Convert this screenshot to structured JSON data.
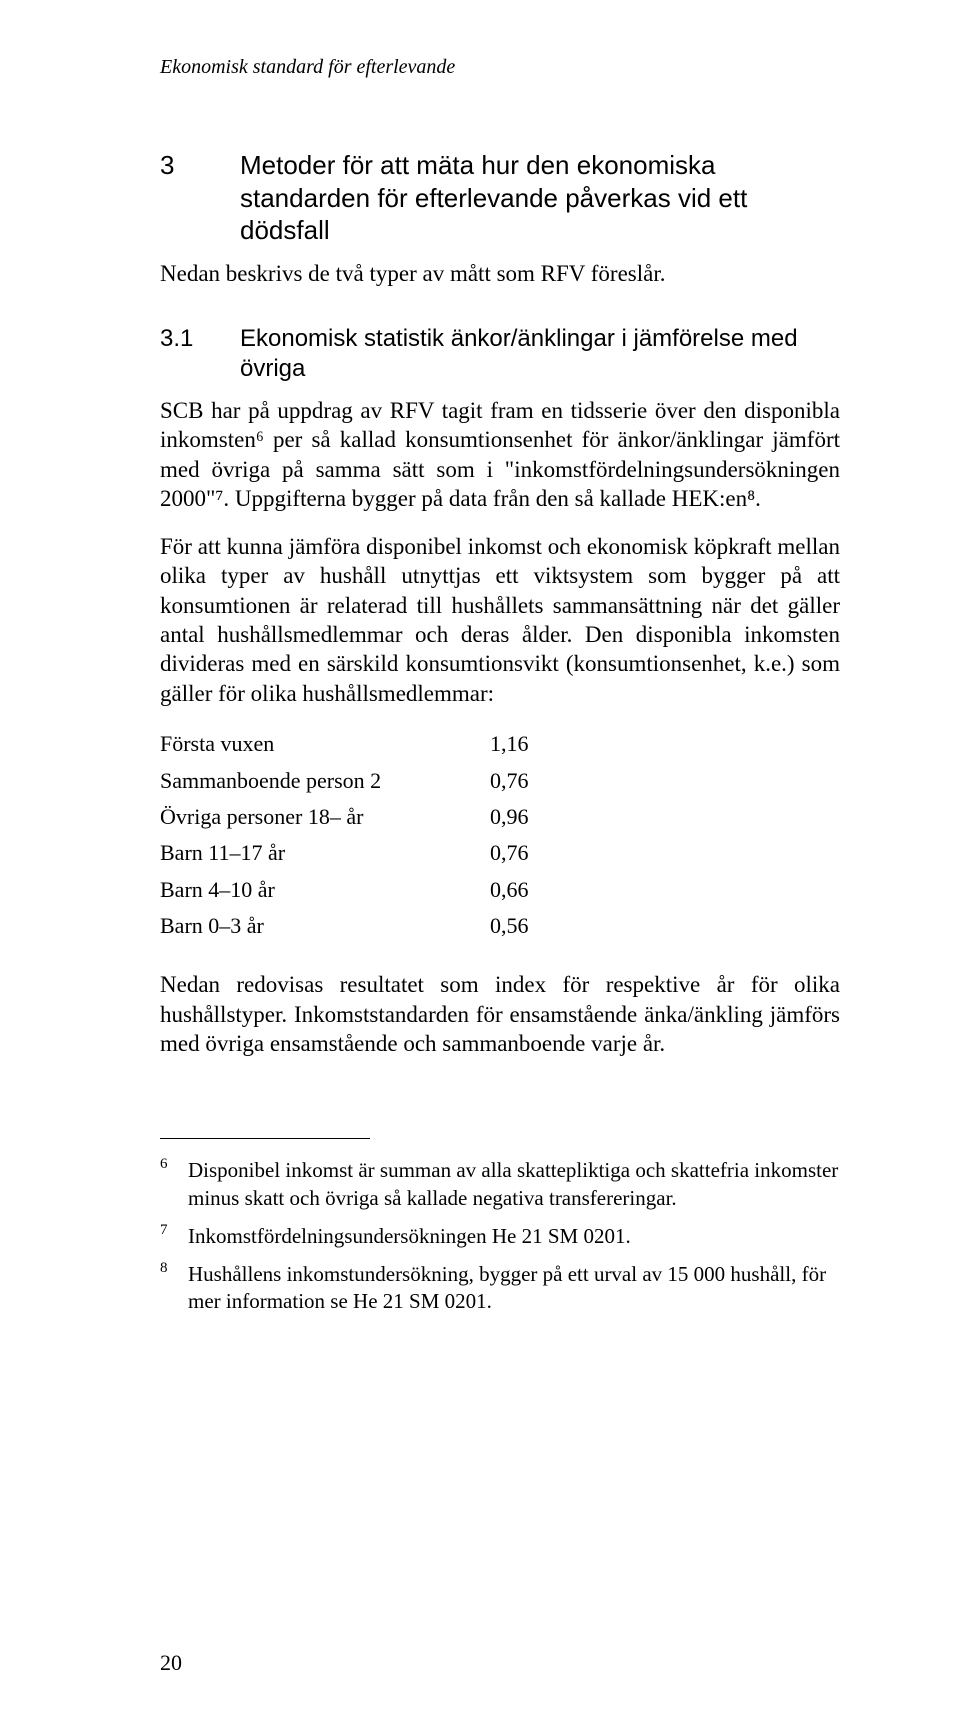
{
  "running_head": "Ekonomisk standard för efterlevande",
  "section": {
    "num": "3",
    "title": "Metoder för att mäta hur den ekonomiska standarden för efterlevande påverkas vid ett dödsfall"
  },
  "intro": "Nedan beskrivs de två typer av mått som RFV föreslår.",
  "subsection": {
    "num": "3.1",
    "title": "Ekonomisk statistik änkor/änklingar i jämförelse med övriga"
  },
  "para1": "SCB har på uppdrag av RFV tagit fram en tidsserie över den disponibla inkomsten⁶ per så kallad konsumtionsenhet för änkor/änklingar jämfört med övriga på samma sätt som i \"inkomstfördelningsundersökningen 2000\"⁷. Uppgifterna bygger på data från den så kallade HEK:en⁸.",
  "para2": "För att kunna jämföra disponibel inkomst och ekonomisk köpkraft mellan olika typer av hushåll utnyttjas ett viktsystem som bygger på att konsumtionen är relaterad till hushållets sammansättning när det gäller antal hushållsmedlemmar och deras ålder. Den disponibla inkomsten divideras med en särskild konsumtionsvikt (konsumtionsenhet, k.e.) som gäller för olika hushållsmedlemmar:",
  "weights": {
    "rows": [
      {
        "label": "Första vuxen",
        "value": "1,16"
      },
      {
        "label": "Sammanboende person 2",
        "value": "0,76"
      },
      {
        "label": "Övriga personer 18– år",
        "value": "0,96"
      },
      {
        "label": "Barn 11–17 år",
        "value": "0,76"
      },
      {
        "label": "Barn 4–10 år",
        "value": "0,66"
      },
      {
        "label": "Barn 0–3 år",
        "value": "0,56"
      }
    ]
  },
  "para3": "Nedan redovisas resultatet som index för respektive år för olika hushållstyper. Inkomststandarden för ensamstående änka/änkling jämförs med övriga ensamstående och sammanboende varje år.",
  "footnotes": [
    {
      "num": "6",
      "text": "Disponibel inkomst är summan av alla skattepliktiga och skattefria inkomster minus skatt och övriga så kallade negativa transfereringar."
    },
    {
      "num": "7",
      "text": "Inkomstfördelningsundersökningen He 21 SM 0201."
    },
    {
      "num": "8",
      "text": "Hushållens inkomstundersökning, bygger på ett urval av 15 000 hushåll, för mer information se He 21 SM 0201."
    }
  ],
  "page_number": "20"
}
